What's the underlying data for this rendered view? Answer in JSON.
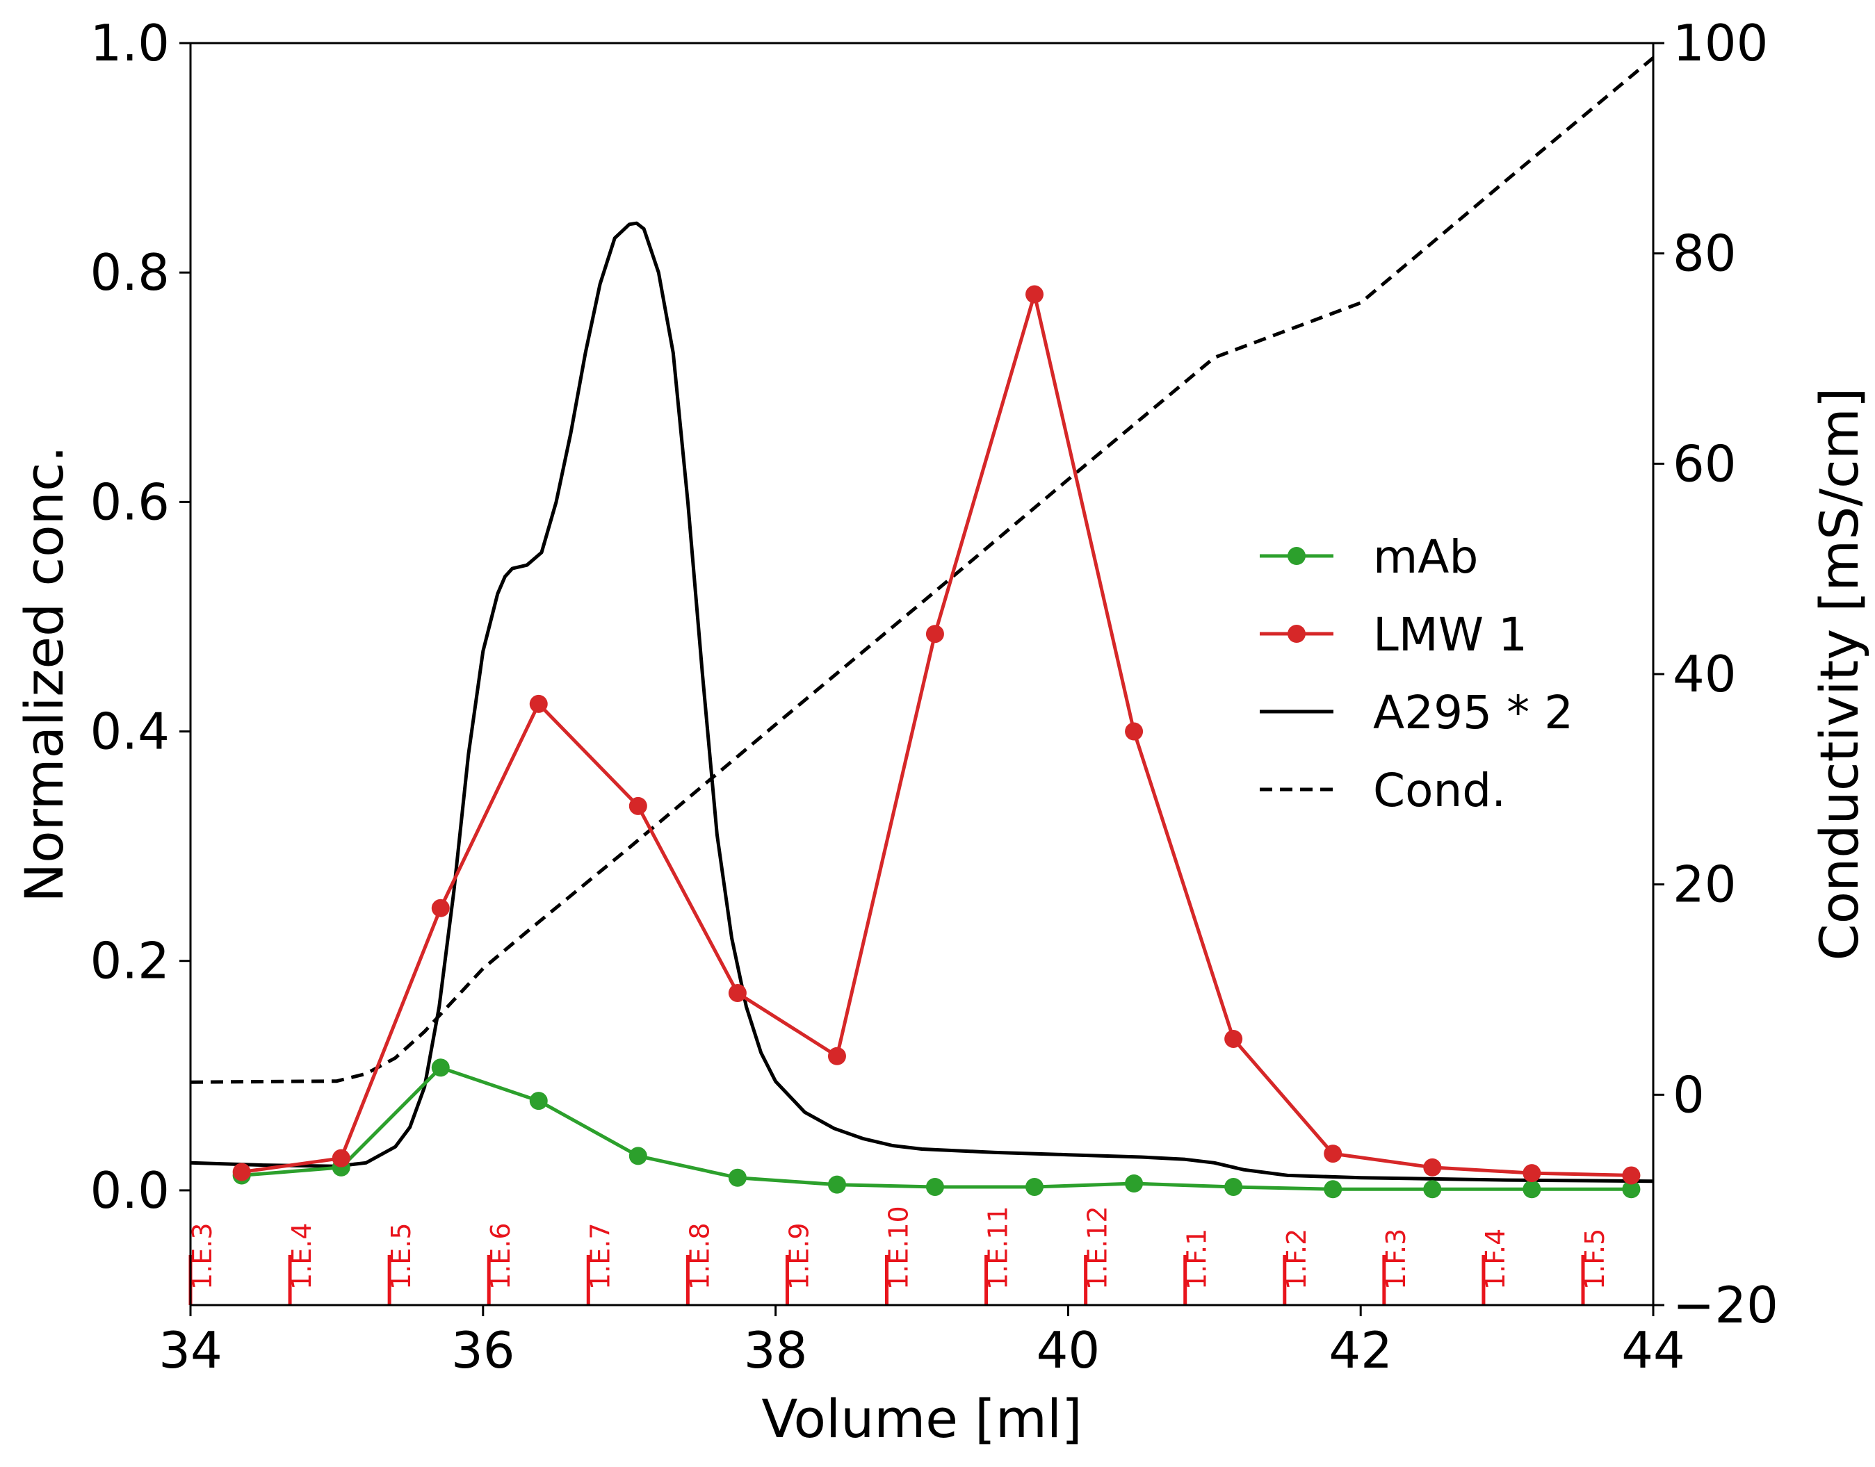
{
  "chart_data": {
    "type": "line",
    "xlabel": "Volume [ml]",
    "ylabel": "Normalized conc.",
    "y2label": "Conductivity [mS/cm]",
    "xlim": [
      34,
      44
    ],
    "ylim": [
      -0.1,
      1.0
    ],
    "y2lim": [
      -20,
      100
    ],
    "xticks": [
      "34",
      "36",
      "38",
      "40",
      "42",
      "44"
    ],
    "yticks": [
      "0.0",
      "0.2",
      "0.4",
      "0.6",
      "0.8",
      "1.0"
    ],
    "y2ticks": [
      "−20",
      "0",
      "20",
      "40",
      "60",
      "80",
      "100"
    ],
    "legend_position": "center-right",
    "series": [
      {
        "name": "mAb",
        "color": "#2ca02c",
        "style": "line-marker",
        "x": [
          34.35,
          35.03,
          35.71,
          36.38,
          37.06,
          37.74,
          38.42,
          39.09,
          39.77,
          40.45,
          41.13,
          41.81,
          42.49,
          43.17,
          43.85
        ],
        "y": [
          0.013,
          0.02,
          0.107,
          0.078,
          0.03,
          0.011,
          0.005,
          0.003,
          0.003,
          0.006,
          0.003,
          0.001,
          0.001,
          0.001,
          0.001
        ]
      },
      {
        "name": "LMW 1",
        "color": "#d62728",
        "style": "line-marker",
        "x": [
          34.35,
          35.03,
          35.71,
          36.38,
          37.06,
          37.74,
          38.42,
          39.09,
          39.77,
          40.45,
          41.13,
          41.81,
          42.49,
          43.17,
          43.85
        ],
        "y": [
          0.016,
          0.028,
          0.246,
          0.424,
          0.335,
          0.172,
          0.117,
          0.485,
          0.781,
          0.4,
          0.132,
          0.032,
          0.02,
          0.015,
          0.013
        ]
      },
      {
        "name": "A295 * 2",
        "color": "#000000",
        "style": "solid",
        "x": [
          34.0,
          34.5,
          35.0,
          35.2,
          35.4,
          35.5,
          35.6,
          35.7,
          35.8,
          35.9,
          36.0,
          36.1,
          36.15,
          36.2,
          36.3,
          36.4,
          36.5,
          36.6,
          36.7,
          36.8,
          36.9,
          37.0,
          37.05,
          37.1,
          37.2,
          37.3,
          37.4,
          37.5,
          37.6,
          37.7,
          37.8,
          37.9,
          38.0,
          38.2,
          38.4,
          38.6,
          38.8,
          39.0,
          39.5,
          40.0,
          40.5,
          40.8,
          41.0,
          41.2,
          41.5,
          42.0,
          43.0,
          44.0
        ],
        "y": [
          0.024,
          0.022,
          0.021,
          0.024,
          0.038,
          0.055,
          0.09,
          0.16,
          0.26,
          0.38,
          0.47,
          0.52,
          0.535,
          0.542,
          0.545,
          0.556,
          0.6,
          0.66,
          0.73,
          0.79,
          0.83,
          0.842,
          0.843,
          0.838,
          0.8,
          0.73,
          0.6,
          0.45,
          0.31,
          0.22,
          0.16,
          0.12,
          0.095,
          0.068,
          0.054,
          0.045,
          0.039,
          0.036,
          0.033,
          0.031,
          0.029,
          0.027,
          0.024,
          0.018,
          0.013,
          0.011,
          0.009,
          0.008
        ]
      },
      {
        "name": "Cond.",
        "color": "#000000",
        "style": "dashed",
        "axis": "right",
        "x": [
          34.0,
          35.0,
          35.2,
          35.4,
          35.6,
          35.8,
          36.0,
          36.3,
          37.0,
          38.0,
          39.0,
          40.0,
          41.0,
          42.0,
          43.0,
          44.0
        ],
        "y": [
          1.2,
          1.3,
          2.0,
          3.5,
          6.0,
          9.0,
          12.0,
          15.5,
          23.5,
          35.2,
          46.8,
          58.5,
          70.1,
          75.3,
          87.0,
          98.6
        ]
      }
    ],
    "fractions": [
      {
        "label": "1.E.3",
        "x": 34.0
      },
      {
        "label": "1.E.4",
        "x": 34.68
      },
      {
        "label": "1.E.5",
        "x": 35.36
      },
      {
        "label": "1.E.6",
        "x": 36.04
      },
      {
        "label": "1.E.7",
        "x": 36.72
      },
      {
        "label": "1.E.8",
        "x": 37.4
      },
      {
        "label": "1.E.9",
        "x": 38.08
      },
      {
        "label": "1.E.10",
        "x": 38.76
      },
      {
        "label": "1.E.11",
        "x": 39.44
      },
      {
        "label": "1.E.12",
        "x": 40.12
      },
      {
        "label": "1.F.1",
        "x": 40.8
      },
      {
        "label": "1.F.2",
        "x": 41.48
      },
      {
        "label": "1.F.3",
        "x": 42.16
      },
      {
        "label": "1.F.4",
        "x": 42.84
      },
      {
        "label": "1.F.5",
        "x": 43.52
      }
    ]
  }
}
